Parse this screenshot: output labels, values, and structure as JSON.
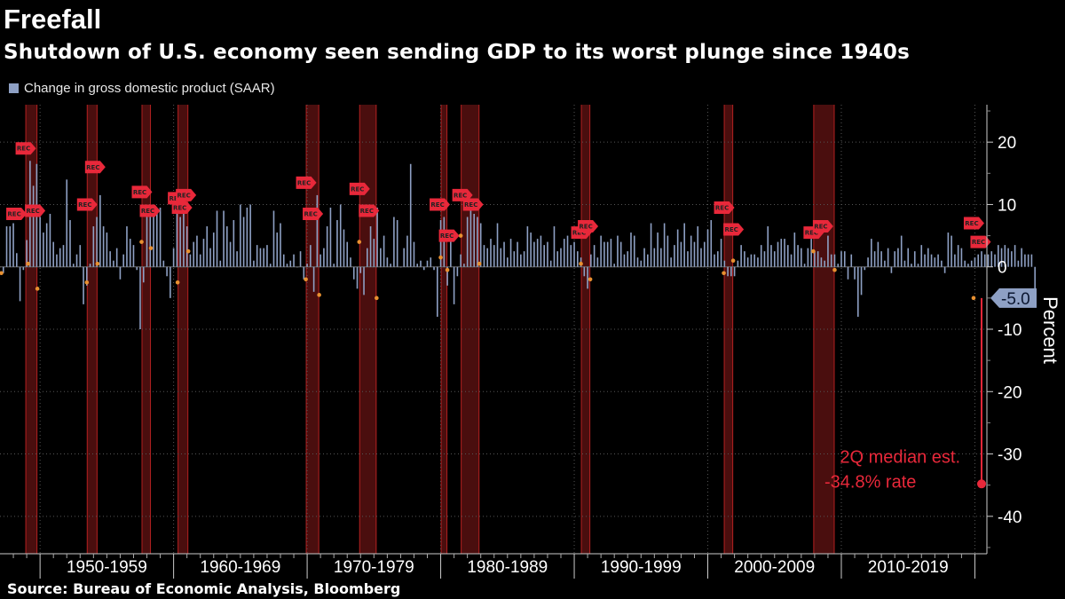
{
  "header": {
    "title": "Freefall",
    "subtitle": "Shutdown of U.S. economy seen sending GDP to its worst plunge since 1940s"
  },
  "legend": {
    "label": "Change in gross domestic product (SAAR)"
  },
  "footer": {
    "source": "Source: Bureau of Economic Analysis, Bloomberg"
  },
  "colors": {
    "bar": "#8ea0c4",
    "recession": "#4a0e0e",
    "accent": "#e8283a",
    "marker": "#e89030"
  },
  "chart_data": {
    "type": "bar",
    "ylabel": "Percent",
    "ylim": [
      -46,
      26
    ],
    "yticks": [
      20,
      10,
      0,
      -10,
      -20,
      -30,
      -40
    ],
    "xlim": [
      1947,
      2020.9
    ],
    "decade_labels": [
      "1950-1959",
      "1960-1969",
      "1970-1979",
      "1980-1989",
      "1990-1999",
      "2000-2009",
      "2010-2019"
    ],
    "decade_label_x": [
      1955.0,
      1965.0,
      1975.0,
      1985.0,
      1995.0,
      2005.0,
      2015.0
    ],
    "decade_boundaries": [
      1950,
      1960,
      1970,
      1980,
      1990,
      2000,
      2010,
      2020
    ],
    "series": [
      {
        "start_year": 1947.25,
        "values": [
          -1.0,
          6.5,
          6.5,
          7.0,
          2.2,
          -5.5,
          -0.5,
          4.3,
          17.0,
          13.0,
          16.5,
          8.0,
          5.5,
          7.0,
          8.5,
          4.0,
          2.0,
          3.0,
          3.5,
          14.0,
          7.5,
          0.5,
          2.0,
          3.5,
          -6.0,
          -3.0,
          0.5,
          6.5,
          8.0,
          11.5,
          6.5,
          5.5,
          2.5,
          1.0,
          3.0,
          -2.0,
          2.0,
          6.5,
          4.5,
          3.5,
          -0.5,
          -10.0,
          -2.5,
          9.5,
          10.0,
          8.5,
          9.0,
          9.5,
          1.0,
          -1.5,
          -5.0,
          3.0,
          9.5,
          8.0,
          10.0,
          6.5,
          2.0,
          4.0,
          5.0,
          2.0,
          4.5,
          6.5,
          3.0,
          5.5,
          9.0,
          1.0,
          9.0,
          6.5,
          4.0,
          7.5,
          2.5,
          10.0,
          8.0,
          9.5,
          10.0,
          1.0,
          3.5,
          3.0,
          3.0,
          3.5,
          0.5,
          9.0,
          5.5,
          7.0,
          2.0,
          0.5,
          1.0,
          2.0,
          0.0,
          2.5,
          -2.0,
          0.5,
          3.5,
          -4.0,
          11.5,
          2.0,
          3.0,
          6.5,
          9.5,
          0.5,
          7.5,
          10.0,
          6.0,
          4.0,
          1.5,
          -2.0,
          -3.5,
          -1.0,
          -4.5,
          3.0,
          6.5,
          4.5,
          9.5,
          3.0,
          5.0,
          1.5,
          0.5,
          8.0,
          7.5,
          0.0,
          3.0,
          5.0,
          16.5,
          4.0,
          0.5,
          1.0,
          -0.5,
          1.0,
          1.5,
          -0.5,
          -8.0,
          7.5,
          8.0,
          -3.0,
          5.0,
          -6.0,
          -1.5,
          2.0,
          0.5,
          8.0,
          9.5,
          8.5,
          8.0,
          7.0,
          3.5,
          3.0,
          4.5,
          3.5,
          7.0,
          3.0,
          4.0,
          1.5,
          4.5,
          2.5,
          4.0,
          2.0,
          2.5,
          6.5,
          5.5,
          4.0,
          4.5,
          5.0,
          3.5,
          4.0,
          1.0,
          6.5,
          2.5,
          3.0,
          4.5,
          5.0,
          3.5,
          4.0,
          2.5,
          1.5,
          -1.5,
          -3.5,
          2.0,
          3.5,
          1.5,
          5.0,
          4.0,
          4.0,
          4.5,
          0.5,
          5.0,
          4.0,
          2.0,
          2.5,
          5.5,
          5.0,
          1.5,
          1.0,
          3.0,
          2.0,
          7.0,
          3.0,
          5.5,
          3.0,
          7.0,
          5.0,
          1.5,
          3.5,
          6.0,
          4.0,
          7.0,
          2.5,
          5.0,
          4.0,
          6.5,
          3.0,
          4.0,
          6.0,
          7.5,
          2.0,
          2.5,
          4.5,
          1.0,
          -1.5,
          -1.5,
          -1.5,
          1.0,
          3.5,
          2.5,
          1.5,
          2.0,
          2.0,
          1.5,
          3.5,
          2.5,
          6.5,
          3.5,
          2.5,
          4.0,
          4.5,
          4.5,
          3.5,
          2.0,
          5.5,
          3.5,
          3.0,
          0.5,
          3.0,
          4.5,
          2.5,
          2.5,
          1.5,
          1.0,
          5.0,
          2.0,
          2.0,
          0.5,
          2.5,
          2.5,
          -2.0,
          2.0,
          -2.0,
          -8.0,
          -4.5,
          -0.5,
          1.5,
          4.5,
          2.5,
          4.0,
          2.5,
          1.0,
          3.0,
          -1.0,
          2.5,
          3.0,
          5.0,
          1.0,
          3.0,
          0.5,
          2.5,
          0.5,
          3.5,
          2.0,
          3.0,
          2.0,
          1.5,
          2.0,
          1.0,
          -1.0,
          5.5,
          5.0,
          2.0,
          3.5,
          3.0,
          1.0,
          0.5,
          1.0,
          1.5,
          2.0,
          2.5,
          2.0,
          2.0,
          2.5,
          2.0,
          3.5,
          3.0,
          3.5,
          3.0,
          2.5,
          3.5,
          1.0,
          3.0,
          2.0,
          2.0,
          2.0,
          -5.0
        ]
      }
    ],
    "recessions": [
      [
        1948.9,
        1949.8
      ],
      [
        1953.5,
        1954.3
      ],
      [
        1957.6,
        1958.3
      ],
      [
        1960.3,
        1961.1
      ],
      [
        1969.9,
        1970.9
      ],
      [
        1973.9,
        1975.2
      ],
      [
        1980.0,
        1980.5
      ],
      [
        1981.5,
        1982.9
      ],
      [
        1990.5,
        1991.2
      ],
      [
        2001.2,
        2001.9
      ],
      [
        2007.9,
        2009.5
      ]
    ],
    "recession_flags": [
      {
        "x": 1948.2,
        "y": 8.5
      },
      {
        "x": 1948.9,
        "y": 19
      },
      {
        "x": 1949.6,
        "y": 9
      },
      {
        "x": 1953.5,
        "y": 10
      },
      {
        "x": 1954.1,
        "y": 16
      },
      {
        "x": 1957.6,
        "y": 12
      },
      {
        "x": 1958.2,
        "y": 9
      },
      {
        "x": 1960.3,
        "y": 11
      },
      {
        "x": 1960.9,
        "y": 11.5
      },
      {
        "x": 1960.6,
        "y": 9.5
      },
      {
        "x": 1969.9,
        "y": 13.5
      },
      {
        "x": 1970.4,
        "y": 8.5
      },
      {
        "x": 1973.9,
        "y": 12.5
      },
      {
        "x": 1974.6,
        "y": 9
      },
      {
        "x": 1979.9,
        "y": 10
      },
      {
        "x": 1980.6,
        "y": 5
      },
      {
        "x": 1981.6,
        "y": 11.5
      },
      {
        "x": 1982.4,
        "y": 10
      },
      {
        "x": 1990.5,
        "y": 5.5
      },
      {
        "x": 1991.0,
        "y": 6.5
      },
      {
        "x": 2001.2,
        "y": 9.5
      },
      {
        "x": 2001.9,
        "y": 6
      },
      {
        "x": 2007.9,
        "y": 5.5
      },
      {
        "x": 2008.6,
        "y": 6.5
      },
      {
        "x": 2019.9,
        "y": 7
      },
      {
        "x": 2020.4,
        "y": 4
      }
    ],
    "recession_markers": [
      {
        "x": 1947.1,
        "y": -1
      },
      {
        "x": 1949.1,
        "y": 0.5
      },
      {
        "x": 1949.8,
        "y": -3.5
      },
      {
        "x": 1953.5,
        "y": -2.5
      },
      {
        "x": 1954.3,
        "y": 0.5
      },
      {
        "x": 1957.6,
        "y": 4
      },
      {
        "x": 1958.3,
        "y": 3
      },
      {
        "x": 1960.3,
        "y": -2.5
      },
      {
        "x": 1961.1,
        "y": 2.5
      },
      {
        "x": 1969.9,
        "y": -2
      },
      {
        "x": 1970.9,
        "y": -4.5
      },
      {
        "x": 1973.9,
        "y": 4
      },
      {
        "x": 1975.2,
        "y": -5
      },
      {
        "x": 1980.0,
        "y": 1.5
      },
      {
        "x": 1980.5,
        "y": -0.5
      },
      {
        "x": 1981.5,
        "y": 5
      },
      {
        "x": 1982.9,
        "y": 0.5
      },
      {
        "x": 1990.5,
        "y": 0.5
      },
      {
        "x": 1991.2,
        "y": -2
      },
      {
        "x": 2001.2,
        "y": -1
      },
      {
        "x": 2001.9,
        "y": 1
      },
      {
        "x": 2007.9,
        "y": 2.5
      },
      {
        "x": 2009.5,
        "y": -0.5
      },
      {
        "x": 2019.9,
        "y": -5
      }
    ],
    "flag_label": "REC",
    "last_value": {
      "label": "-5.0",
      "y": -5.0
    },
    "estimate": {
      "x": 2020.5,
      "y": -34.8,
      "line1": "2Q median est.",
      "line2": "-34.8% rate"
    }
  }
}
